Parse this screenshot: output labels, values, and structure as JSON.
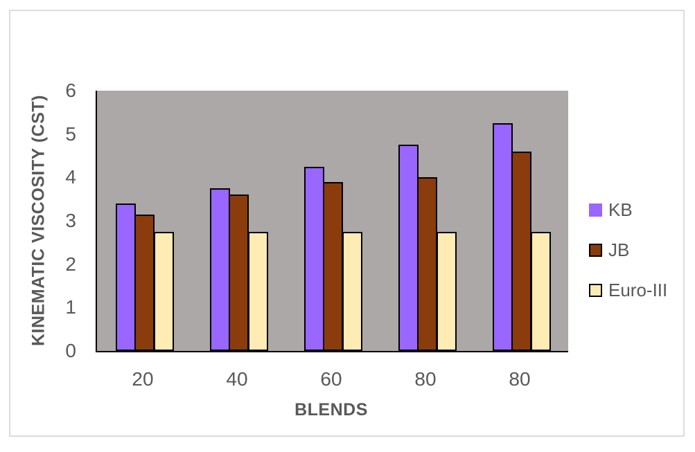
{
  "chart_data": {
    "type": "bar",
    "title": "",
    "xlabel": "BLENDS",
    "ylabel": "KINEMATIC VISCOSITY (CST)",
    "categories": [
      "20",
      "40",
      "60",
      "80",
      "80"
    ],
    "series": [
      {
        "name": "KB",
        "color": "#9966ff",
        "swatch_border": null,
        "bar_border": "#000000",
        "values": [
          3.4,
          3.75,
          4.25,
          4.75,
          5.25
        ]
      },
      {
        "name": "JB",
        "color": "#8a3c0c",
        "swatch_border": "#000000",
        "bar_border": "#000000",
        "values": [
          3.15,
          3.6,
          3.9,
          4.0,
          4.6
        ]
      },
      {
        "name": "Euro-III",
        "color": "#ffebb4",
        "swatch_border": "#000000",
        "bar_border": "#000000",
        "values": [
          2.75,
          2.75,
          2.75,
          2.75,
          2.75
        ]
      }
    ],
    "ylim": [
      0,
      6
    ],
    "yticks": [
      0,
      1,
      2,
      3,
      4,
      5,
      6
    ],
    "grid": false,
    "legend_position": "right",
    "plot_background": "#aca8a8",
    "axis_color": "#000000",
    "text_color": "#595959",
    "figure_border_color": "#dcdcdc"
  }
}
